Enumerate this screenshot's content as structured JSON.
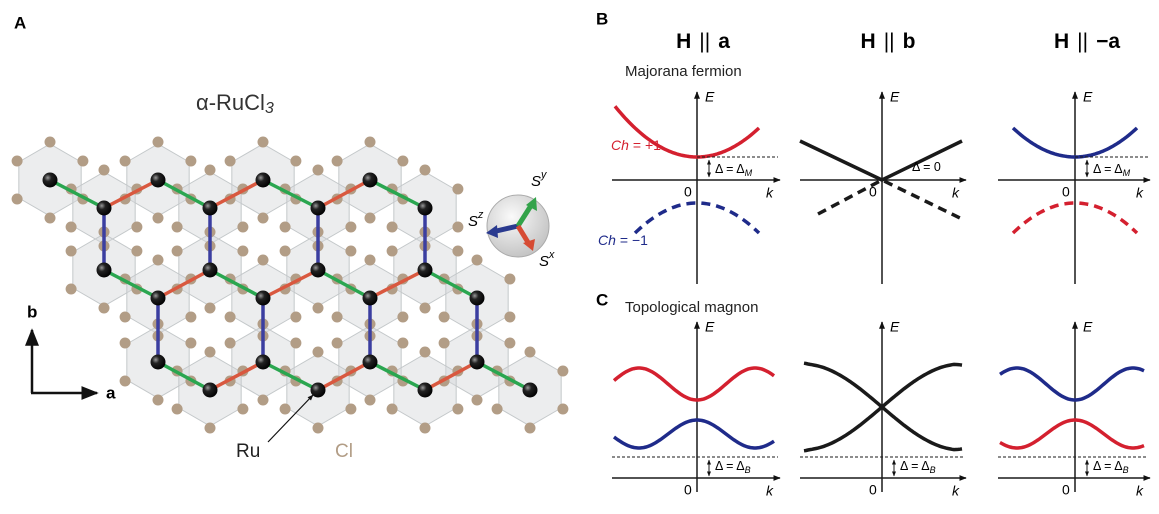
{
  "panel_a": {
    "label": "A",
    "title": {
      "text": "α-RuCl",
      "sub": "3"
    },
    "lattice_b": "b",
    "lattice_a": "a",
    "ru": "Ru",
    "cl": "Cl",
    "spin_z": {
      "text": "S",
      "sup": "z"
    },
    "spin_y": {
      "text": "S",
      "sup": "y"
    },
    "spin_x": {
      "text": "S",
      "sup": "x"
    }
  },
  "panel_b": {
    "label": "B",
    "subtitle": "Majorana fermion",
    "upper_chern": {
      "italic": "Ch",
      "text": "= +1"
    },
    "lower_chern": {
      "italic": "Ch",
      "text": "= −1"
    }
  },
  "panel_c": {
    "label": "C",
    "subtitle": "Topological magnon"
  },
  "columns": [
    {
      "header": {
        "field": "H",
        "relation": "||",
        "direction": "a"
      },
      "majorana": {
        "energy": "E",
        "momentum": "k",
        "origin": "0",
        "gap": {
          "text": "Δ = Δ",
          "sub": "M"
        }
      },
      "magnon": {
        "energy": "E",
        "momentum": "k",
        "origin": "0",
        "gap": {
          "text": "Δ = Δ",
          "sub": "B"
        }
      }
    },
    {
      "header": {
        "field": "H",
        "relation": "||",
        "direction": "b"
      },
      "majorana": {
        "energy": "E",
        "momentum": "k",
        "origin": "0",
        "gap": {
          "text": "Δ = 0"
        }
      },
      "magnon": {
        "energy": "E",
        "momentum": "k",
        "origin": "0",
        "gap": {
          "text": "Δ = Δ",
          "sub": "B"
        }
      }
    },
    {
      "header": {
        "field": "H",
        "relation": "||",
        "direction": "−a"
      },
      "majorana": {
        "energy": "E",
        "momentum": "k",
        "origin": "0",
        "gap": {
          "text": "Δ = Δ",
          "sub": "M"
        }
      },
      "magnon": {
        "energy": "E",
        "momentum": "k",
        "origin": "0",
        "gap": {
          "text": "Δ = Δ",
          "sub": "B"
        }
      }
    }
  ]
}
